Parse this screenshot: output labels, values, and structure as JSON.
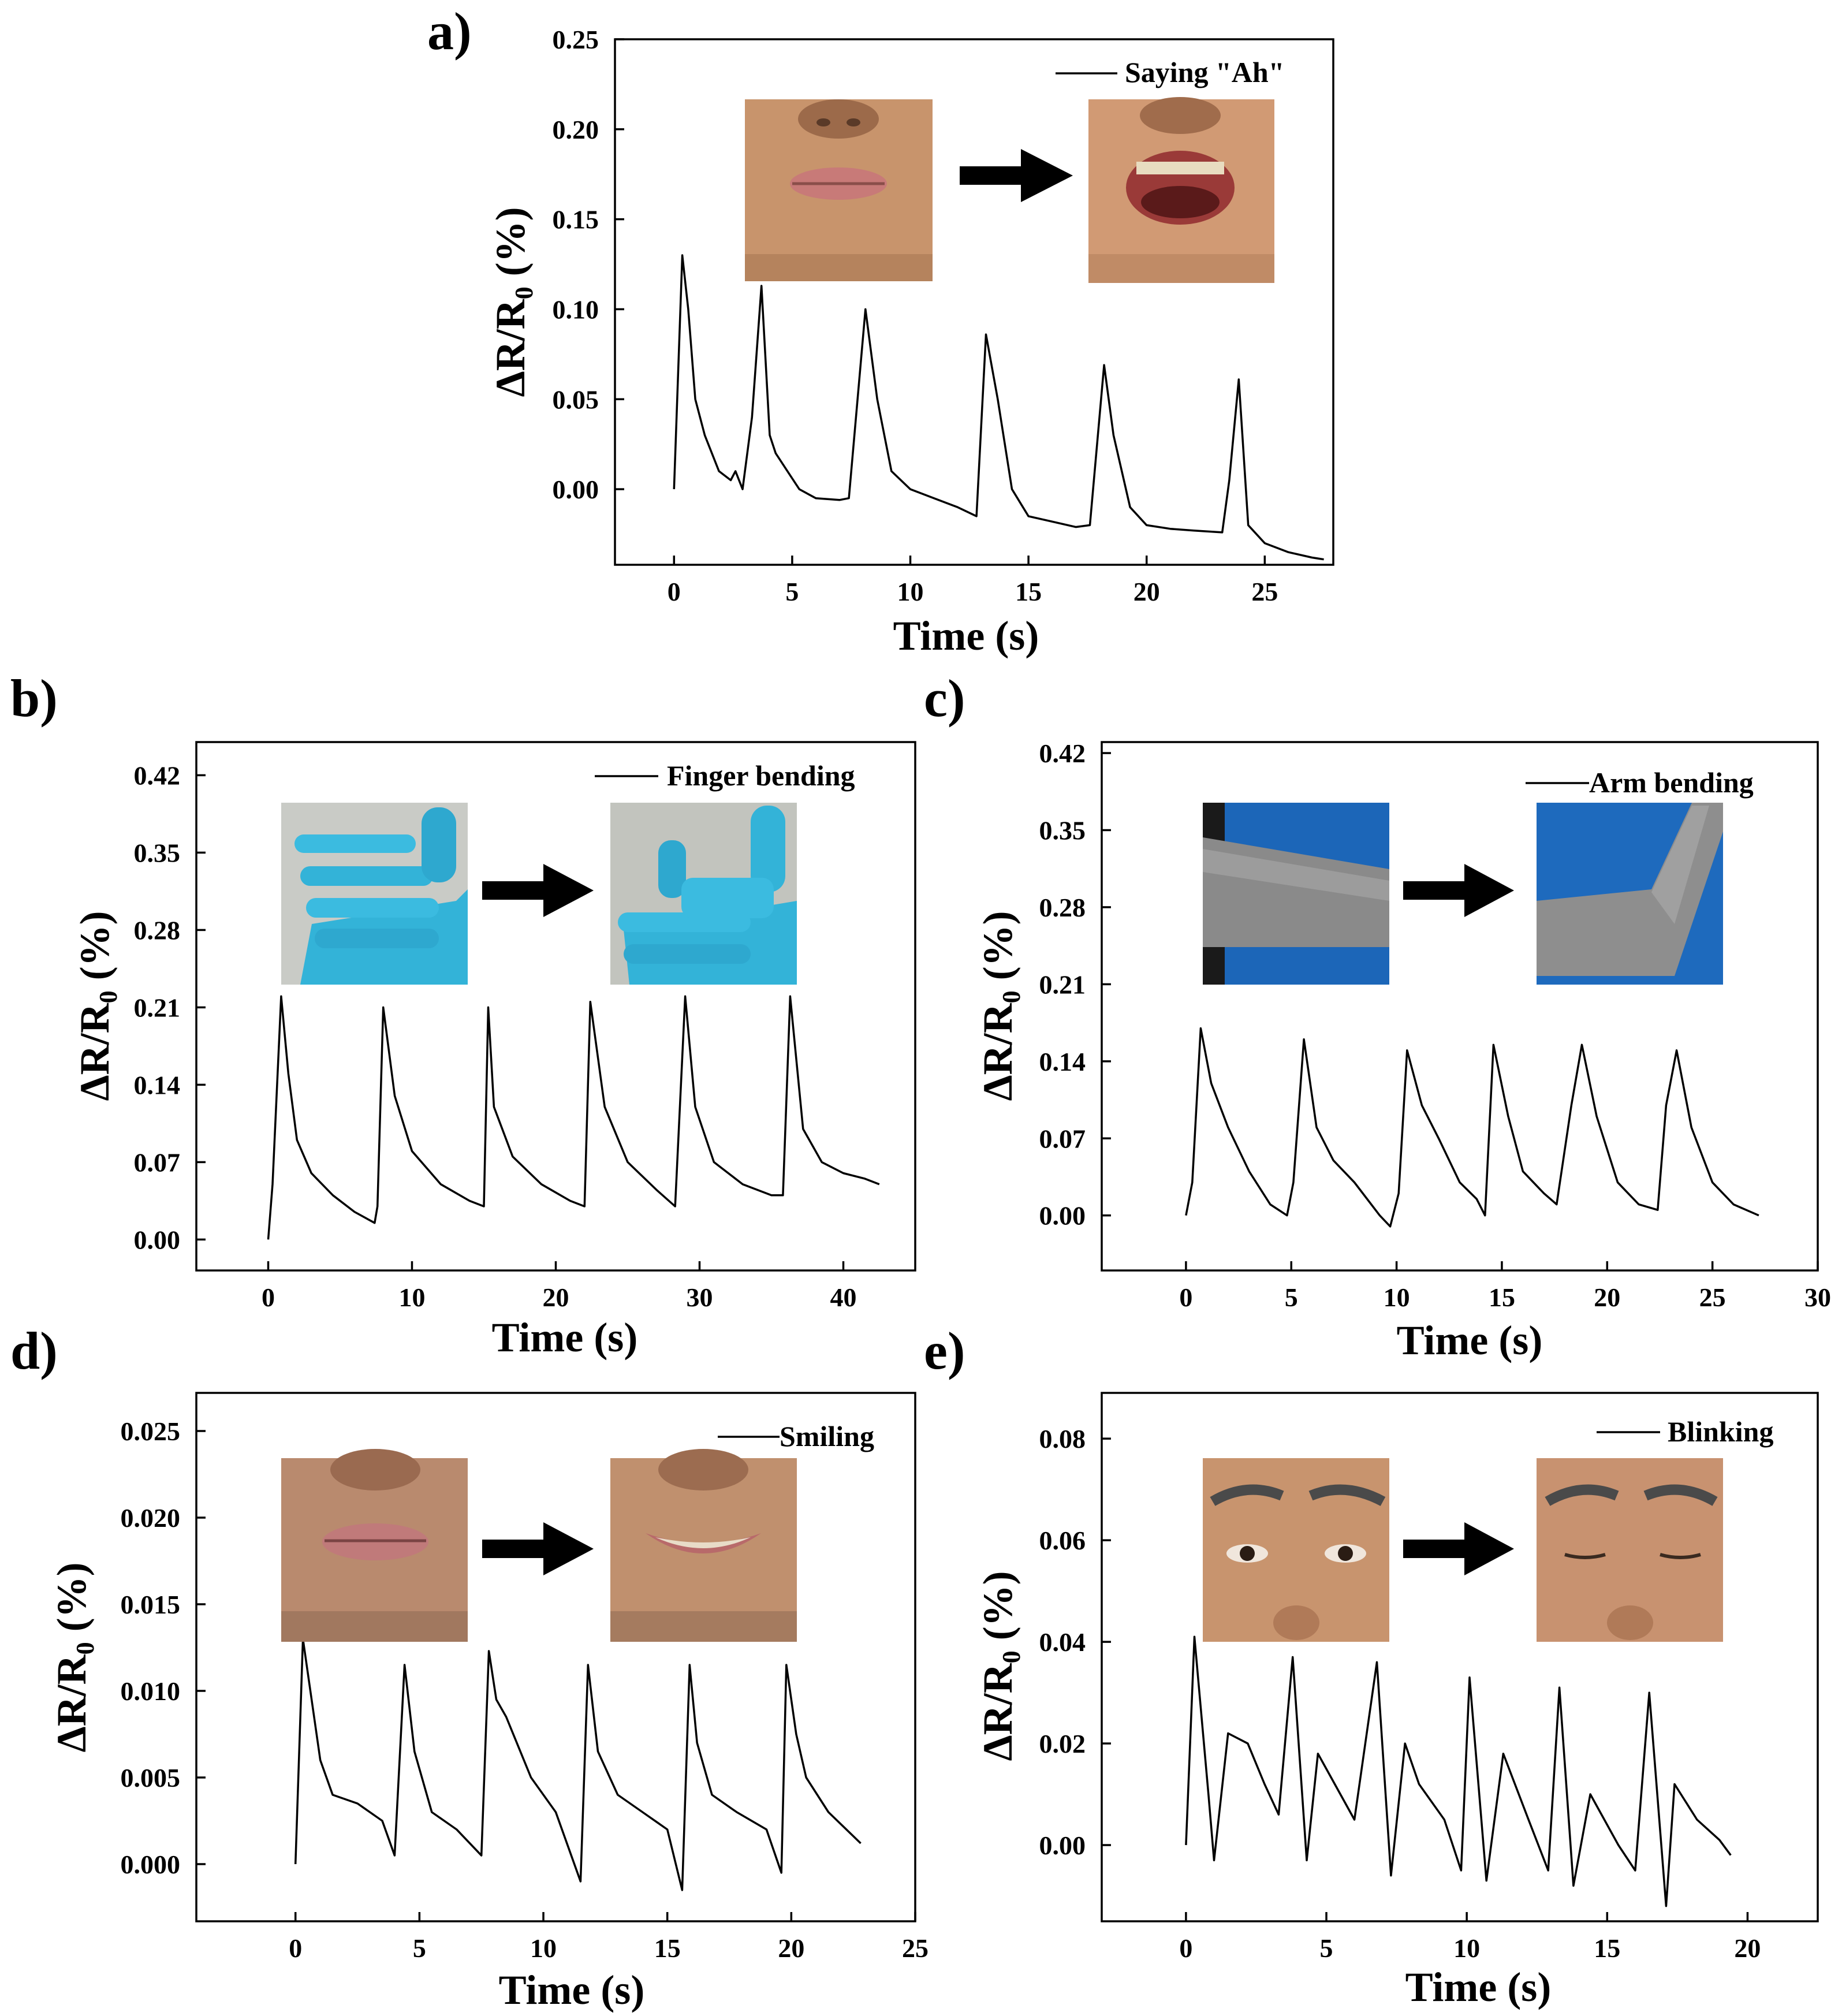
{
  "figure": {
    "panels": [
      {
        "letter": "a)",
        "legend": "Saying \"Ah\"",
        "scene": "mouth"
      },
      {
        "letter": "b)",
        "legend": "Finger bending",
        "scene": "glove"
      },
      {
        "letter": "c)",
        "legend": "Arm bending",
        "scene": "arm"
      },
      {
        "letter": "d)",
        "legend": "Smiling",
        "scene": "smile"
      },
      {
        "letter": "e)",
        "legend": "Blinking",
        "scene": "eyes"
      }
    ]
  },
  "chart_data": [
    {
      "type": "line",
      "panel": "a",
      "title": "",
      "series": [
        {
          "name": "Saying \"Ah\"",
          "x": [
            0,
            0.35,
            0.6,
            0.9,
            1.3,
            1.9,
            2.4,
            2.6,
            2.9,
            3.3,
            3.7,
            4.05,
            4.3,
            4.8,
            5.3,
            6.0,
            7.0,
            7.4,
            8.1,
            8.6,
            9.2,
            10.0,
            11.0,
            12.0,
            12.8,
            13.2,
            13.7,
            14.3,
            15.0,
            16.0,
            17.0,
            17.6,
            18.2,
            18.6,
            19.3,
            20.0,
            21.0,
            22.0,
            23.2,
            23.5,
            23.9,
            24.3,
            25.0,
            26.0,
            27.0,
            27.5
          ],
          "y": [
            0.0,
            0.13,
            0.1,
            0.05,
            0.03,
            0.01,
            0.005,
            0.01,
            0.0,
            0.04,
            0.113,
            0.03,
            0.02,
            0.01,
            0.0,
            -0.005,
            -0.006,
            -0.005,
            0.1,
            0.05,
            0.01,
            -0.0,
            -0.005,
            -0.01,
            -0.015,
            0.086,
            0.05,
            0.0,
            -0.015,
            -0.018,
            -0.021,
            -0.02,
            0.069,
            0.03,
            -0.01,
            -0.02,
            -0.022,
            -0.023,
            -0.024,
            0.005,
            0.061,
            -0.02,
            -0.03,
            -0.035,
            -0.038,
            -0.039
          ]
        }
      ],
      "xlabel": "Time (s)",
      "ylabel": "ΔR/R0 (%)",
      "xlim": [
        -2.5,
        27.9
      ],
      "ylim": [
        -0.042,
        0.25
      ],
      "xticks": [
        0,
        5,
        10,
        15,
        20,
        25
      ],
      "xtick_labels": [
        "0",
        "5",
        "10",
        "15",
        "20",
        "25"
      ],
      "yticks": [
        0.0,
        0.05,
        0.1,
        0.15,
        0.2,
        0.25
      ],
      "ytick_labels": [
        "0.00",
        "0.05",
        "0.10",
        "0.15",
        "0.20",
        "0.25"
      ],
      "legend_position": "top-right",
      "grid": false
    },
    {
      "type": "line",
      "panel": "b",
      "title": "",
      "series": [
        {
          "name": "Finger bending",
          "x": [
            0,
            0.3,
            0.9,
            1.4,
            2.0,
            3.0,
            4.5,
            6.0,
            7.4,
            7.6,
            8.0,
            8.8,
            10.0,
            12.0,
            14.0,
            15.0,
            15.3,
            15.7,
            17.0,
            19.0,
            21.0,
            22.0,
            22.4,
            23.4,
            25.0,
            27.0,
            28.3,
            29.0,
            29.7,
            31.0,
            33.0,
            35.0,
            35.8,
            36.3,
            37.2,
            38.5,
            40.0,
            41.5,
            42.5
          ],
          "y": [
            0.0,
            0.05,
            0.22,
            0.15,
            0.09,
            0.06,
            0.04,
            0.025,
            0.015,
            0.03,
            0.21,
            0.13,
            0.08,
            0.05,
            0.035,
            0.03,
            0.21,
            0.12,
            0.075,
            0.05,
            0.035,
            0.03,
            0.215,
            0.12,
            0.07,
            0.045,
            0.03,
            0.22,
            0.12,
            0.07,
            0.05,
            0.04,
            0.04,
            0.22,
            0.1,
            0.07,
            0.06,
            0.055,
            0.05
          ]
        }
      ],
      "xlabel": "Time (s)",
      "ylabel": "ΔR/R0 (%)",
      "xlim": [
        -5,
        45
      ],
      "ylim": [
        -0.028,
        0.45
      ],
      "xticks": [
        0,
        10,
        20,
        30,
        40
      ],
      "xtick_labels": [
        "0",
        "10",
        "20",
        "30",
        "40"
      ],
      "yticks": [
        0.0,
        0.07,
        0.14,
        0.21,
        0.28,
        0.35,
        0.42
      ],
      "ytick_labels": [
        "0.00",
        "0.07",
        "0.14",
        "0.21",
        "0.28",
        "0.35",
        "0.42"
      ],
      "legend_position": "top-right",
      "grid": false
    },
    {
      "type": "line",
      "panel": "c",
      "title": "",
      "series": [
        {
          "name": "Arm bending",
          "x": [
            0,
            0.3,
            0.7,
            1.2,
            2.0,
            3.0,
            4.0,
            4.8,
            5.1,
            5.6,
            6.2,
            7.0,
            8.0,
            9.2,
            9.7,
            10.1,
            10.5,
            11.2,
            12.0,
            13.0,
            13.8,
            14.2,
            14.6,
            15.3,
            16.0,
            17.0,
            17.6,
            18.3,
            18.8,
            19.5,
            20.5,
            21.5,
            22.4,
            22.8,
            23.3,
            24.0,
            25.0,
            26.0,
            27.2
          ],
          "y": [
            0.0,
            0.03,
            0.17,
            0.12,
            0.08,
            0.04,
            0.01,
            0.0,
            0.03,
            0.16,
            0.08,
            0.05,
            0.03,
            0.0,
            -0.01,
            0.02,
            0.15,
            0.1,
            0.07,
            0.03,
            0.015,
            0.0,
            0.155,
            0.09,
            0.04,
            0.02,
            0.01,
            0.1,
            0.155,
            0.09,
            0.03,
            0.01,
            0.005,
            0.1,
            0.15,
            0.08,
            0.03,
            0.01,
            0.0
          ]
        }
      ],
      "xlabel": "Time (s)",
      "ylabel": "ΔR/R0 (%)",
      "xlim": [
        -4,
        30
      ],
      "ylim": [
        -0.05,
        0.43
      ],
      "xticks": [
        0,
        5,
        10,
        15,
        20,
        25,
        30
      ],
      "xtick_labels": [
        "0",
        "5",
        "10",
        "15",
        "20",
        "25",
        "30"
      ],
      "yticks": [
        0.0,
        0.07,
        0.14,
        0.21,
        0.28,
        0.35,
        0.42
      ],
      "ytick_labels": [
        "0.00",
        "0.07",
        "0.14",
        "0.21",
        "0.28",
        "0.35",
        "0.42"
      ],
      "legend_position": "top-right",
      "grid": false
    },
    {
      "type": "line",
      "panel": "d",
      "title": "",
      "series": [
        {
          "name": "Smiling",
          "x": [
            0,
            0.3,
            0.6,
            1.0,
            1.5,
            2.5,
            3.5,
            4.0,
            4.4,
            4.8,
            5.5,
            6.5,
            7.5,
            7.8,
            8.1,
            8.5,
            9.5,
            10.5,
            11.5,
            11.8,
            12.2,
            13.0,
            14.0,
            15.0,
            15.6,
            15.9,
            16.2,
            16.8,
            17.8,
            19.0,
            19.6,
            19.8,
            20.2,
            20.6,
            21.5,
            22.8
          ],
          "y": [
            0.0,
            0.013,
            0.01,
            0.006,
            0.004,
            0.0035,
            0.0025,
            0.0005,
            0.0115,
            0.0065,
            0.003,
            0.002,
            0.0005,
            0.0123,
            0.0095,
            0.0085,
            0.005,
            0.003,
            -0.001,
            0.0115,
            0.0065,
            0.004,
            0.003,
            0.002,
            -0.0015,
            0.0115,
            0.007,
            0.004,
            0.003,
            0.002,
            -0.0005,
            0.0115,
            0.0075,
            0.005,
            0.003,
            0.0012
          ]
        }
      ],
      "xlabel": "Time (s)",
      "ylabel": "ΔR/R0 (%)",
      "xlim": [
        -4,
        25
      ],
      "ylim": [
        -0.0033,
        0.0272
      ],
      "xticks": [
        0,
        5,
        10,
        15,
        20,
        25
      ],
      "xtick_labels": [
        "0",
        "5",
        "10",
        "15",
        "20",
        "25"
      ],
      "yticks": [
        0.0,
        0.005,
        0.01,
        0.015,
        0.02,
        0.025
      ],
      "ytick_labels": [
        "0.000",
        "0.005",
        "0.010",
        "0.015",
        "0.020",
        "0.025"
      ],
      "legend_position": "top-right",
      "grid": false
    },
    {
      "type": "line",
      "panel": "e",
      "title": "",
      "series": [
        {
          "name": "Blinking",
          "x": [
            0,
            0.3,
            0.8,
            1.0,
            1.5,
            2.2,
            2.8,
            3.3,
            3.8,
            4.3,
            4.7,
            5.3,
            6.0,
            6.8,
            7.3,
            7.8,
            8.3,
            9.2,
            9.8,
            10.1,
            10.7,
            11.3,
            12.2,
            12.9,
            13.3,
            13.8,
            14.4,
            15.4,
            16.0,
            16.5,
            17.1,
            17.4,
            18.2,
            19.0,
            19.4
          ],
          "y": [
            0.0,
            0.041,
            0.01,
            -0.003,
            0.022,
            0.02,
            0.012,
            0.006,
            0.037,
            -0.003,
            0.018,
            0.012,
            0.005,
            0.036,
            -0.006,
            0.02,
            0.012,
            0.005,
            -0.005,
            0.033,
            -0.007,
            0.018,
            0.005,
            -0.005,
            0.031,
            -0.008,
            0.01,
            0.0,
            -0.005,
            0.03,
            -0.012,
            0.012,
            0.005,
            0.001,
            -0.002
          ]
        }
      ],
      "xlabel": "Time (s)",
      "ylabel": "ΔR/R0 (%)",
      "xlim": [
        -3,
        22.5
      ],
      "ylim": [
        -0.015,
        0.089
      ],
      "xticks": [
        0,
        5,
        10,
        15,
        20
      ],
      "xtick_labels": [
        "0",
        "5",
        "10",
        "15",
        "20"
      ],
      "yticks": [
        0.0,
        0.02,
        0.04,
        0.06,
        0.08
      ],
      "ytick_labels": [
        "0.00",
        "0.02",
        "0.04",
        "0.06",
        "0.08"
      ],
      "legend_position": "top-right",
      "grid": false
    }
  ]
}
